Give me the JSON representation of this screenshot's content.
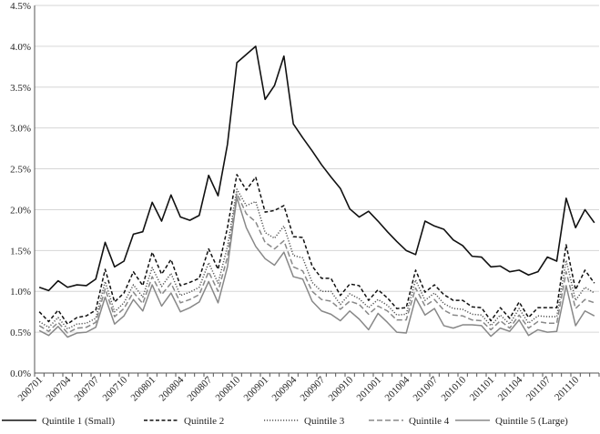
{
  "chart_data": {
    "type": "line",
    "title": "",
    "xlabel": "",
    "ylabel": "",
    "ylim": [
      0,
      0.045
    ],
    "yticks": [
      "0.0%",
      "0.5%",
      "1.0%",
      "1.5%",
      "2.0%",
      "2.5%",
      "3.0%",
      "3.5%",
      "4.0%",
      "4.5%"
    ],
    "xtick_labels": [
      "200701",
      "200704",
      "200707",
      "200710",
      "200801",
      "200804",
      "200807",
      "200810",
      "200901",
      "200904",
      "200907",
      "200910",
      "201001",
      "201004",
      "201007",
      "201010",
      "201101",
      "201104",
      "201107",
      "201110"
    ],
    "x_start": "200701",
    "n_points": 60,
    "grid": "horizontal",
    "legend": "bottom",
    "series": [
      {
        "name": "Quintile 1 (Small)",
        "style": "solid",
        "color": "#111111",
        "values": [
          1.05,
          1.01,
          1.13,
          1.05,
          1.08,
          1.07,
          1.15,
          1.6,
          1.3,
          1.37,
          1.7,
          1.73,
          2.09,
          1.86,
          2.18,
          1.91,
          1.87,
          1.93,
          2.42,
          2.17,
          2.8,
          3.8,
          3.9,
          4.0,
          3.35,
          3.52,
          3.88,
          3.05,
          2.88,
          2.72,
          2.55,
          2.4,
          2.26,
          2.01,
          1.91,
          1.98,
          1.86,
          1.73,
          1.61,
          1.5,
          1.45,
          1.86,
          1.8,
          1.76,
          1.63,
          1.56,
          1.43,
          1.42,
          1.3,
          1.31,
          1.24,
          1.26,
          1.2,
          1.24,
          1.42,
          1.37,
          2.14,
          1.78,
          2.0,
          1.84
        ]
      },
      {
        "name": "Quintile 2",
        "style": "dashed",
        "color": "#111111",
        "values": [
          0.75,
          0.63,
          0.77,
          0.6,
          0.68,
          0.7,
          0.77,
          1.27,
          0.87,
          0.98,
          1.24,
          1.07,
          1.48,
          1.21,
          1.39,
          1.07,
          1.11,
          1.16,
          1.52,
          1.27,
          1.78,
          2.43,
          2.24,
          2.4,
          1.97,
          1.99,
          2.05,
          1.67,
          1.66,
          1.31,
          1.16,
          1.16,
          0.95,
          1.09,
          1.07,
          0.89,
          1.02,
          0.92,
          0.79,
          0.8,
          1.26,
          0.99,
          1.08,
          0.96,
          0.89,
          0.89,
          0.81,
          0.8,
          0.64,
          0.8,
          0.67,
          0.87,
          0.68,
          0.8,
          0.8,
          0.8,
          1.57,
          1.02,
          1.26,
          1.1
        ]
      },
      {
        "name": "Quintile 3",
        "style": "dotted",
        "color": "#555555",
        "values": [
          0.63,
          0.56,
          0.68,
          0.54,
          0.6,
          0.61,
          0.67,
          1.12,
          0.75,
          0.86,
          1.08,
          0.93,
          1.29,
          1.06,
          1.22,
          0.95,
          0.99,
          1.05,
          1.35,
          1.1,
          1.55,
          2.25,
          2.05,
          2.1,
          1.72,
          1.65,
          1.8,
          1.44,
          1.41,
          1.11,
          1.0,
          1.0,
          0.84,
          0.97,
          0.91,
          0.8,
          0.9,
          0.83,
          0.71,
          0.72,
          1.14,
          0.89,
          0.98,
          0.85,
          0.79,
          0.78,
          0.72,
          0.71,
          0.58,
          0.71,
          0.6,
          0.79,
          0.61,
          0.7,
          0.69,
          0.69,
          1.38,
          0.89,
          1.05,
          0.98
        ]
      },
      {
        "name": "Quintile 4",
        "style": "dashed",
        "color": "#888888",
        "values": [
          0.58,
          0.51,
          0.62,
          0.49,
          0.55,
          0.56,
          0.62,
          1.03,
          0.69,
          0.79,
          0.99,
          0.85,
          1.18,
          0.96,
          1.1,
          0.86,
          0.9,
          0.96,
          1.24,
          1.0,
          1.42,
          2.2,
          1.95,
          1.85,
          1.6,
          1.52,
          1.62,
          1.3,
          1.25,
          1.0,
          0.9,
          0.88,
          0.78,
          0.88,
          0.84,
          0.72,
          0.82,
          0.76,
          0.65,
          0.65,
          1.04,
          0.82,
          0.9,
          0.77,
          0.71,
          0.7,
          0.65,
          0.64,
          0.53,
          0.64,
          0.55,
          0.71,
          0.55,
          0.63,
          0.61,
          0.61,
          1.24,
          0.79,
          0.9,
          0.86
        ]
      },
      {
        "name": "Quintile 5 (Large)",
        "style": "solid",
        "color": "#888888",
        "values": [
          0.52,
          0.46,
          0.57,
          0.44,
          0.49,
          0.5,
          0.56,
          0.93,
          0.6,
          0.7,
          0.9,
          0.76,
          1.08,
          0.82,
          0.98,
          0.75,
          0.8,
          0.87,
          1.12,
          0.86,
          1.3,
          2.15,
          1.78,
          1.55,
          1.4,
          1.32,
          1.48,
          1.18,
          1.15,
          0.88,
          0.76,
          0.72,
          0.64,
          0.76,
          0.66,
          0.53,
          0.73,
          0.62,
          0.5,
          0.49,
          0.92,
          0.71,
          0.79,
          0.58,
          0.55,
          0.59,
          0.59,
          0.58,
          0.45,
          0.55,
          0.51,
          0.65,
          0.46,
          0.53,
          0.5,
          0.51,
          1.07,
          0.58,
          0.76,
          0.7
        ]
      }
    ]
  }
}
